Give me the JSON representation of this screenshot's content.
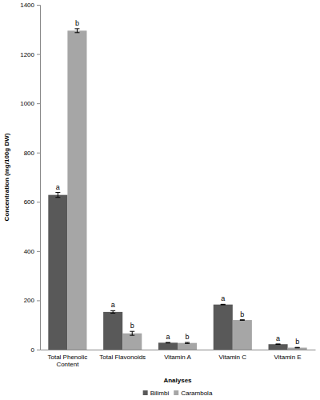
{
  "chart_data": {
    "type": "bar",
    "x_label": "Analyses",
    "y_label": "Concentration (mg/100g DW)",
    "categories": [
      "Total Phenolic Content",
      "Total Flavonoids",
      "Vitamin A",
      "Vitamin C",
      "Vitamin E"
    ],
    "series": [
      {
        "name": "Bilimbi",
        "color": "#595959",
        "values": [
          628,
          153,
          28,
          183,
          22
        ],
        "errors": [
          10,
          5,
          1,
          1,
          1
        ],
        "letters": [
          "a",
          "a",
          "a",
          "a",
          "a"
        ]
      },
      {
        "name": "Carambola",
        "color": "#a6a6a6",
        "values": [
          1295,
          66,
          27,
          120,
          8
        ],
        "errors": [
          8,
          8,
          2,
          1,
          1
        ],
        "letters": [
          "b",
          "b",
          "b",
          "b",
          "b"
        ]
      }
    ],
    "ylim": [
      0,
      1400
    ],
    "yticks": [
      0,
      200,
      400,
      600,
      800,
      1000,
      1200,
      1400
    ],
    "grid": false,
    "legend": "bottom"
  }
}
